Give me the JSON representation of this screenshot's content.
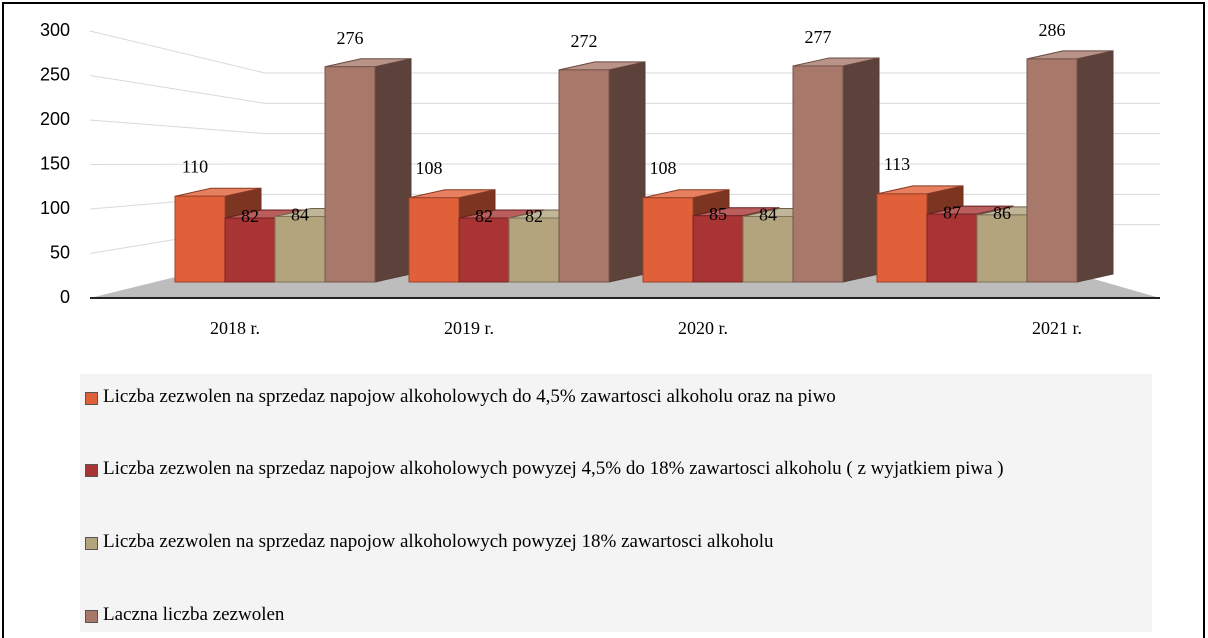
{
  "chart_data": {
    "type": "bar3d",
    "categories": [
      "2018 r.",
      "2019 r.",
      "2020 r.",
      "2021 r."
    ],
    "series": [
      {
        "name": "Liczba zezwolen na sprzedaz napojow alkoholowych do 4,5% zawartosci alkoholu oraz na piwo",
        "color": "#e0603a",
        "values": [
          110,
          108,
          108,
          113
        ]
      },
      {
        "name": "Liczba zezwolen na sprzedaz napojow alkoholowych powyzej 4,5% do 18% zawartosci alkoholu ( z wyjatkiem piwa )",
        "color": "#a83434",
        "values": [
          82,
          82,
          85,
          87
        ]
      },
      {
        "name": "Liczba zezwolen na sprzedaz napojow alkoholowych powyzej 18% zawartosci alkoholu",
        "color": "#b3a47e",
        "values": [
          84,
          82,
          84,
          86
        ]
      },
      {
        "name": "Laczna liczba zezwolen",
        "color": "#a8786a",
        "values": [
          276,
          272,
          277,
          286
        ]
      }
    ],
    "ylim": [
      0,
      300
    ],
    "yticks": [
      0,
      50,
      100,
      150,
      200,
      250,
      300
    ],
    "grid": true,
    "legend": "bottom"
  }
}
